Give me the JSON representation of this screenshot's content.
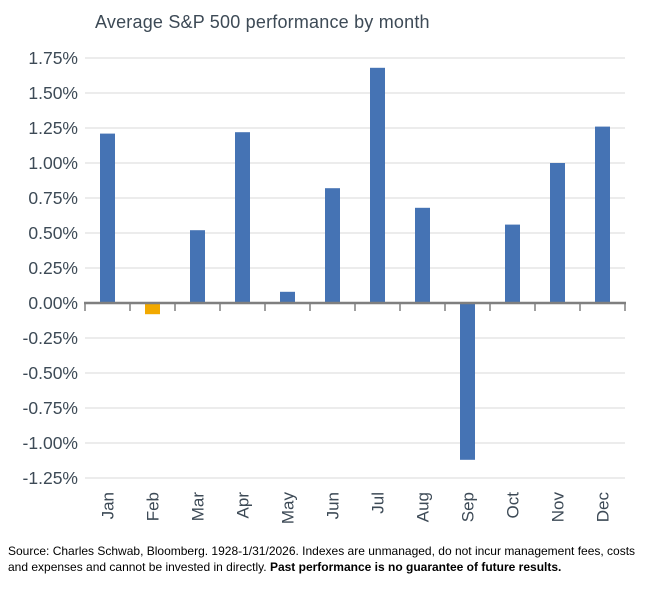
{
  "chart_data": {
    "type": "bar",
    "title": "Average S&P 500 performance by month",
    "categories": [
      "Jan",
      "Feb",
      "Mar",
      "Apr",
      "May",
      "Jun",
      "Jul",
      "Aug",
      "Sep",
      "Oct",
      "Nov",
      "Dec"
    ],
    "values": [
      1.21,
      -0.08,
      0.52,
      1.22,
      0.08,
      0.82,
      1.68,
      0.68,
      -1.12,
      0.56,
      1.0,
      1.26
    ],
    "unit": "%",
    "y_ticks": [
      1.75,
      1.5,
      1.25,
      1.0,
      0.75,
      0.5,
      0.25,
      0.0,
      -0.25,
      -0.5,
      -0.75,
      -1.0,
      -1.25
    ],
    "ylim": [
      -1.25,
      1.75
    ],
    "grid": true,
    "legend": "none",
    "highlight_category": "Feb",
    "colors": {
      "bar": "#4573B4",
      "highlight": "#F2A900",
      "grid": "#D9D9D9",
      "axis": "#7F7F7F",
      "text": "#3D4A56"
    }
  },
  "footer": {
    "text": "Source: Charles Schwab, Bloomberg. 1928-1/31/2026. Indexes are unmanaged, do not incur management fees, costs and expenses and cannot be invested in directly. ",
    "bold_text": "Past performance is no guarantee of future results."
  }
}
